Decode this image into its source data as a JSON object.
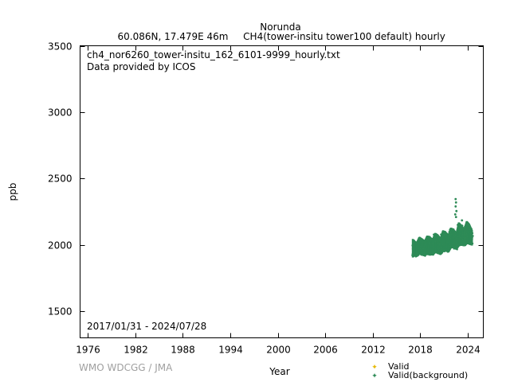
{
  "header": {
    "station": "Norunda",
    "location": "60.086N, 17.479E 46m",
    "series_desc": "CH4(tower-insitu tower100 default) hourly"
  },
  "plot": {
    "filename": "ch4_nor6260_tower-insitu_162_6101-9999_hourly.txt",
    "provider": "Data provided by ICOS",
    "date_range": "2017/01/31 - 2024/07/28"
  },
  "credit": "WMO WDCGG / JMA",
  "colors": {
    "valid": "#e6b800",
    "valid_background": "#2e8b57"
  },
  "chart_data": {
    "type": "scatter",
    "xlabel": "Year",
    "ylabel": "ppb",
    "xlim": [
      1975,
      2026
    ],
    "ylim": [
      1300,
      3500
    ],
    "x_ticks": [
      1976,
      1982,
      1988,
      1994,
      2000,
      2006,
      2012,
      2018,
      2024
    ],
    "y_ticks": [
      1500,
      2000,
      2500,
      3000,
      3500
    ],
    "legend_position": "bottom-right",
    "grid": false,
    "series": [
      {
        "name": "Valid",
        "points": []
      },
      {
        "name": "Valid(background)",
        "envelope": [
          [
            2017.08,
            1905,
            2045
          ],
          [
            2017.3,
            1915,
            2030
          ],
          [
            2017.6,
            1910,
            2020
          ],
          [
            2017.9,
            1935,
            2060
          ],
          [
            2018.2,
            1920,
            2050
          ],
          [
            2018.6,
            1915,
            2030
          ],
          [
            2018.9,
            1930,
            2070
          ],
          [
            2019.2,
            1925,
            2065
          ],
          [
            2019.6,
            1920,
            2040
          ],
          [
            2019.9,
            1940,
            2090
          ],
          [
            2020.2,
            1935,
            2080
          ],
          [
            2020.6,
            1925,
            2050
          ],
          [
            2020.9,
            1950,
            2110
          ],
          [
            2021.2,
            1950,
            2100
          ],
          [
            2021.6,
            1945,
            2075
          ],
          [
            2021.9,
            1975,
            2130
          ],
          [
            2022.2,
            1975,
            2120
          ],
          [
            2022.6,
            1965,
            2090
          ],
          [
            2022.9,
            1990,
            2170
          ],
          [
            2023.2,
            1995,
            2150
          ],
          [
            2023.6,
            1990,
            2120
          ],
          [
            2023.9,
            2005,
            2180
          ],
          [
            2024.2,
            2005,
            2160
          ],
          [
            2024.57,
            1995,
            2110
          ]
        ],
        "outliers": [
          [
            2022.5,
            2345
          ],
          [
            2022.55,
            2320
          ],
          [
            2022.5,
            2290
          ],
          [
            2022.6,
            2255
          ],
          [
            2022.45,
            2230
          ],
          [
            2022.55,
            2210
          ],
          [
            2023.3,
            2185
          ]
        ]
      }
    ]
  }
}
